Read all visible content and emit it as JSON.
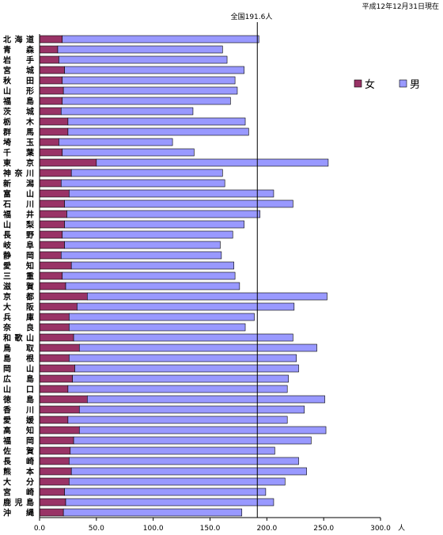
{
  "chart_data": {
    "type": "bar",
    "stacked": true,
    "orientation": "horizontal",
    "date_note": "平成12年12月31日現在",
    "reference_label": "全国191.6人",
    "reference_value": 191.6,
    "unit": "人",
    "xlim": [
      0,
      300
    ],
    "xticks": [
      "0.0",
      "50.0",
      "100.0",
      "150.0",
      "200.0",
      "250.0",
      "300.0"
    ],
    "grid": false,
    "legend_position": "right",
    "categories": [
      "北海道",
      "青森",
      "岩手",
      "宮城",
      "秋田",
      "山形",
      "福島",
      "茨城",
      "栃木",
      "群馬",
      "埼玉",
      "千葉",
      "東京",
      "神奈川",
      "新潟",
      "富山",
      "石川",
      "福井",
      "山梨",
      "長野",
      "岐阜",
      "静岡",
      "愛知",
      "三重",
      "滋賀",
      "京都",
      "大阪",
      "兵庫",
      "奈良",
      "和歌山",
      "鳥取",
      "島根",
      "岡山",
      "広島",
      "山口",
      "徳島",
      "香川",
      "愛媛",
      "高知",
      "福岡",
      "佐賀",
      "長崎",
      "熊本",
      "大分",
      "宮崎",
      "鹿児島",
      "沖縄"
    ],
    "series": [
      {
        "name": "女",
        "color": "#993366",
        "values": [
          20,
          16,
          17,
          22,
          20,
          21,
          20,
          19,
          25,
          25,
          17,
          20,
          50,
          28,
          19,
          26,
          22,
          24,
          22,
          20,
          22,
          19,
          28,
          20,
          23,
          42,
          33,
          26,
          26,
          30,
          35,
          26,
          31,
          29,
          25,
          42,
          35,
          25,
          35,
          30,
          27,
          26,
          28,
          26,
          22,
          23,
          21
        ]
      },
      {
        "name": "男",
        "color": "#9999FF",
        "values": [
          173,
          145,
          148,
          158,
          152,
          153,
          148,
          116,
          156,
          159,
          100,
          116,
          204,
          133,
          144,
          180,
          201,
          170,
          158,
          150,
          137,
          141,
          143,
          152,
          153,
          211,
          191,
          163,
          155,
          193,
          209,
          200,
          197,
          190,
          193,
          209,
          198,
          193,
          217,
          209,
          180,
          202,
          207,
          190,
          177,
          183,
          157
        ]
      }
    ]
  }
}
